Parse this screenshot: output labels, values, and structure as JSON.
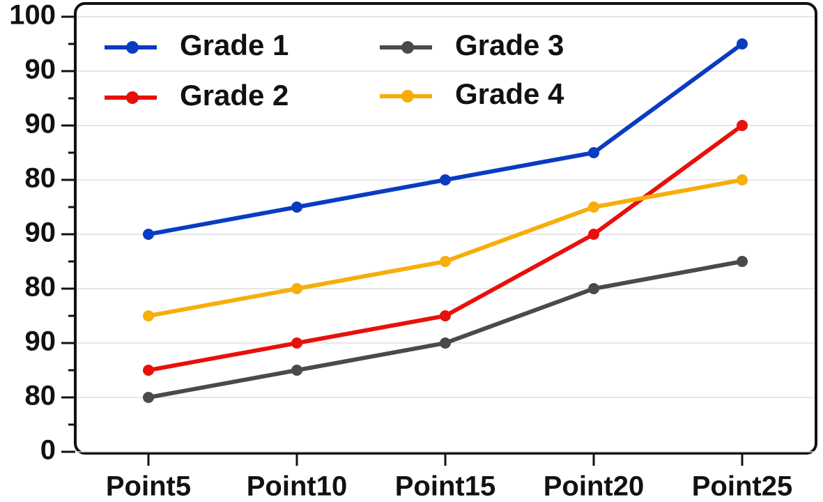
{
  "chart_data": {
    "type": "line",
    "categories": [
      "Point5",
      "Point10",
      "Point15",
      "Point20",
      "Point25"
    ],
    "series": [
      {
        "name": "Grade 1",
        "color": "#0a3cc2",
        "values": [
          50,
          56.25,
          62.5,
          68.75,
          93.75
        ]
      },
      {
        "name": "Grade 2",
        "color": "#e8100c",
        "values": [
          18.75,
          25,
          31.25,
          50,
          75
        ]
      },
      {
        "name": "Grade 3",
        "color": "#4a4a4a",
        "values": [
          12.5,
          18.75,
          25,
          37.5,
          43.75
        ]
      },
      {
        "name": "Grade 4",
        "color": "#f7ad0a",
        "values": [
          31.25,
          37.5,
          43.75,
          56.25,
          62.5
        ]
      }
    ],
    "ylim": [
      0,
      100
    ],
    "yticks": [
      0,
      {
        "value": 12.5,
        "label": "80"
      },
      {
        "value": 25,
        "label": "90"
      },
      {
        "value": 37.5,
        "label": "80"
      },
      {
        "value": 50,
        "label": "90"
      },
      {
        "value": 62.5,
        "label": "80"
      },
      {
        "value": 75,
        "label": "90"
      },
      {
        "value": 87.5,
        "label": "90"
      },
      100
    ],
    "grid": true
  }
}
